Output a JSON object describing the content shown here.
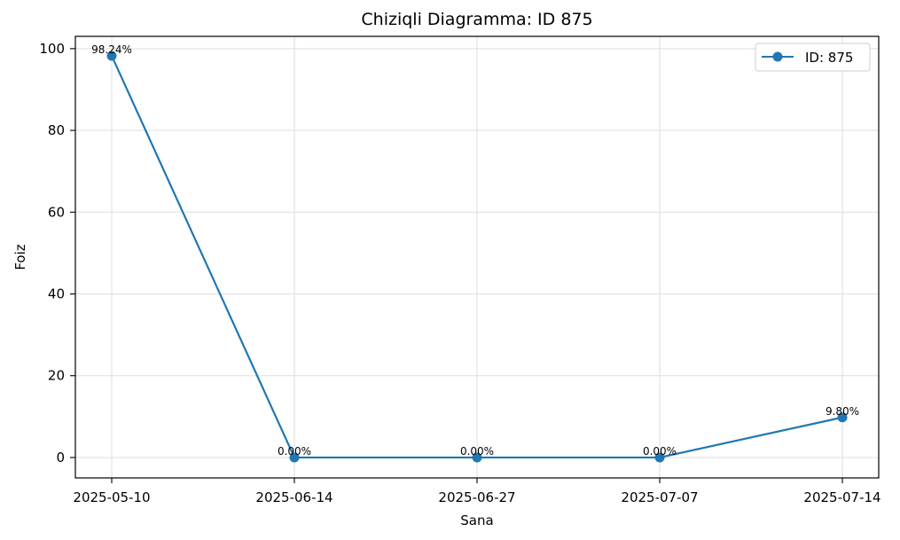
{
  "chart_data": {
    "type": "line",
    "title": "Chiziqli Diagramma: ID 875",
    "xlabel": "Sana",
    "ylabel": "Foiz",
    "categories": [
      "2025-05-10",
      "2025-06-14",
      "2025-06-27",
      "2025-07-07",
      "2025-07-14"
    ],
    "series": [
      {
        "name": "ID: 875",
        "values": [
          98.24,
          0.0,
          0.0,
          0.0,
          9.8
        ],
        "data_labels": [
          "98.24%",
          "0.00%",
          "0.00%",
          "0.00%",
          "9.80%"
        ],
        "color": "#1f77b4",
        "marker": "circle"
      }
    ],
    "ylim": [
      -5,
      103
    ],
    "yticks": [
      0,
      20,
      40,
      60,
      80,
      100
    ],
    "grid": true,
    "legend_position": "top-right"
  }
}
